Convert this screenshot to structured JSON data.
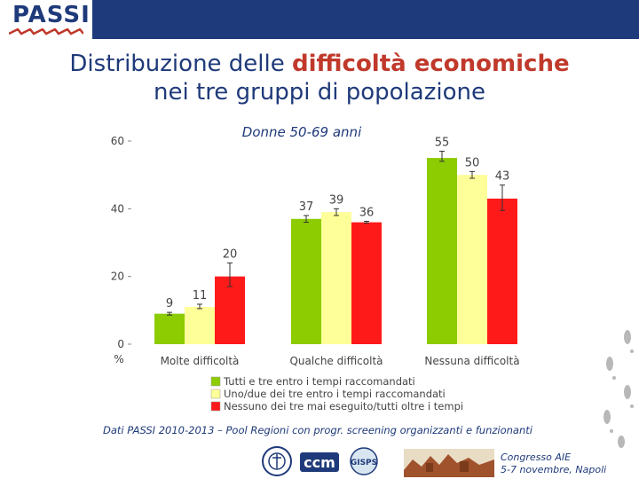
{
  "logo": {
    "text": "PASSI"
  },
  "title": {
    "line1_plain": "Distribuzione delle ",
    "line1_bold": "difficoltà economiche",
    "line2": "nei tre gruppi di popolazione"
  },
  "colors": {
    "green": "#8ccc00",
    "yellow": "#ffff99",
    "red": "#ff1a1a",
    "navy": "#1f3a7a",
    "title_red": "#c0392b"
  },
  "chart_data": {
    "type": "bar",
    "title": "Donne 50-69 anni",
    "ylabel": "%",
    "ylim": [
      0,
      60
    ],
    "yticks": [
      0,
      20,
      40,
      60
    ],
    "categories": [
      "Molte difficoltà",
      "Qualche difficoltà",
      "Nessuna difficoltà"
    ],
    "series": [
      {
        "name": "Tutti e tre entro i tempi raccomandati",
        "color": "#8ccc00",
        "values": [
          9,
          37,
          55
        ]
      },
      {
        "name": "Uno/due dei tre entro i tempi raccomandati",
        "color": "#ffff99",
        "values": [
          11,
          39,
          50
        ]
      },
      {
        "name": "Nessuno dei tre mai eseguito/tutti oltre i tempi",
        "color": "#ff1a1a",
        "values": [
          20,
          36,
          43
        ]
      }
    ],
    "error_bars": [
      [
        [
          8.6,
          9.4
        ],
        [
          36,
          38
        ],
        [
          54,
          57
        ]
      ],
      [
        [
          10.5,
          11.8
        ],
        [
          38,
          40
        ],
        [
          49,
          51
        ]
      ],
      [
        [
          17,
          24
        ],
        [
          35.7,
          36.3
        ],
        [
          39.5,
          47
        ]
      ]
    ],
    "legend_position": "bottom"
  },
  "source_note": "Dati PASSI 2010-2013 – Pool Regioni con progr. screening organizzanti e funzionanti",
  "footer": {
    "logos": [
      "istituto-superiore-sanita",
      "ccm",
      "gisps",
      "city-illustration"
    ],
    "ccm_text": "ccm",
    "gisps_text": "GISPS",
    "congress_line1": "Congresso AIE",
    "congress_line2": "5-7 novembre, Napoli"
  }
}
